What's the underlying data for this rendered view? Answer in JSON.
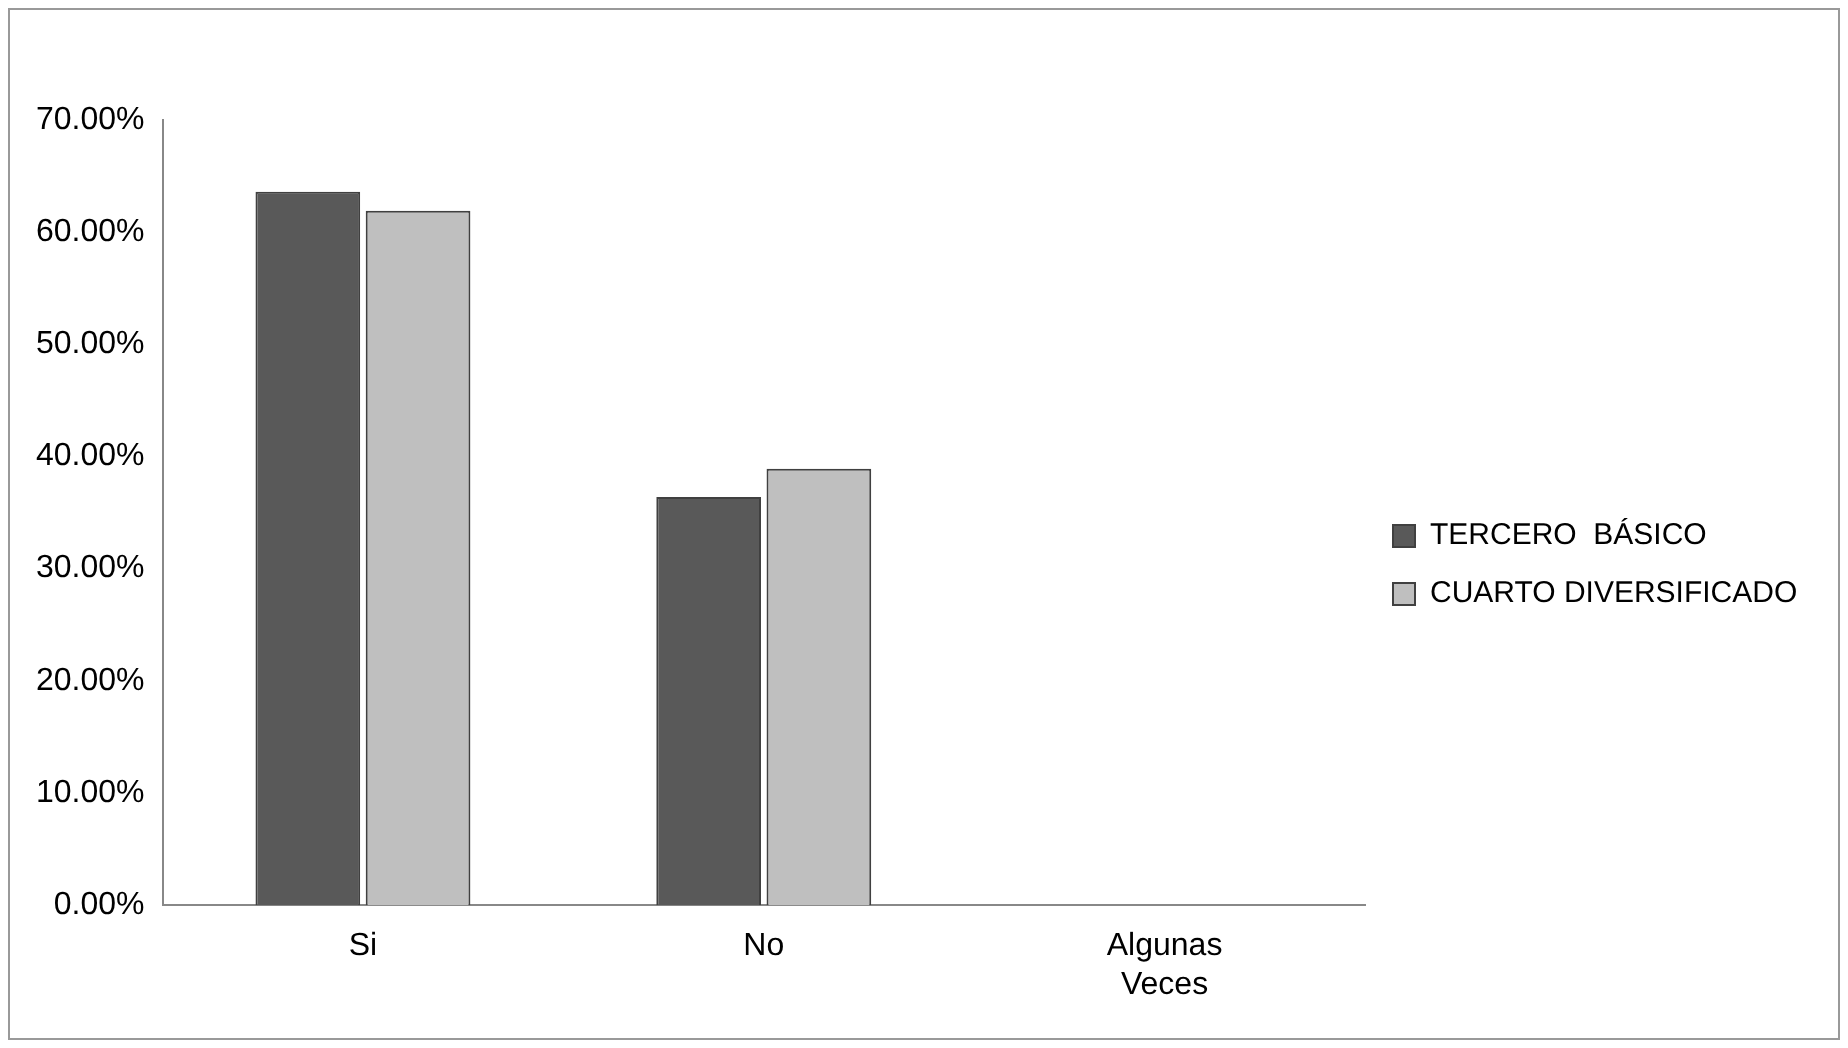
{
  "chart_data": {
    "type": "bar",
    "categories": [
      "Si",
      "No",
      "Algunas Veces"
    ],
    "series": [
      {
        "name": "TERCERO  BÁSICO",
        "color": "#595959",
        "values": [
          63.6,
          36.4,
          0
        ]
      },
      {
        "name": "CUARTO DIVERSIFICADO",
        "color": "#bfbfbf",
        "values": [
          61.9,
          38.9,
          0
        ]
      }
    ],
    "ylim": [
      0,
      70
    ],
    "yticks": [
      {
        "value": 0,
        "label": "0.00%"
      },
      {
        "value": 10,
        "label": "10.00%"
      },
      {
        "value": 20,
        "label": "20.00%"
      },
      {
        "value": 30,
        "label": "30.00%"
      },
      {
        "value": 40,
        "label": "40.00%"
      },
      {
        "value": 50,
        "label": "50.00%"
      },
      {
        "value": 60,
        "label": "60.00%"
      },
      {
        "value": 70,
        "label": "70.00%"
      }
    ],
    "grid": false,
    "legend": "right"
  }
}
